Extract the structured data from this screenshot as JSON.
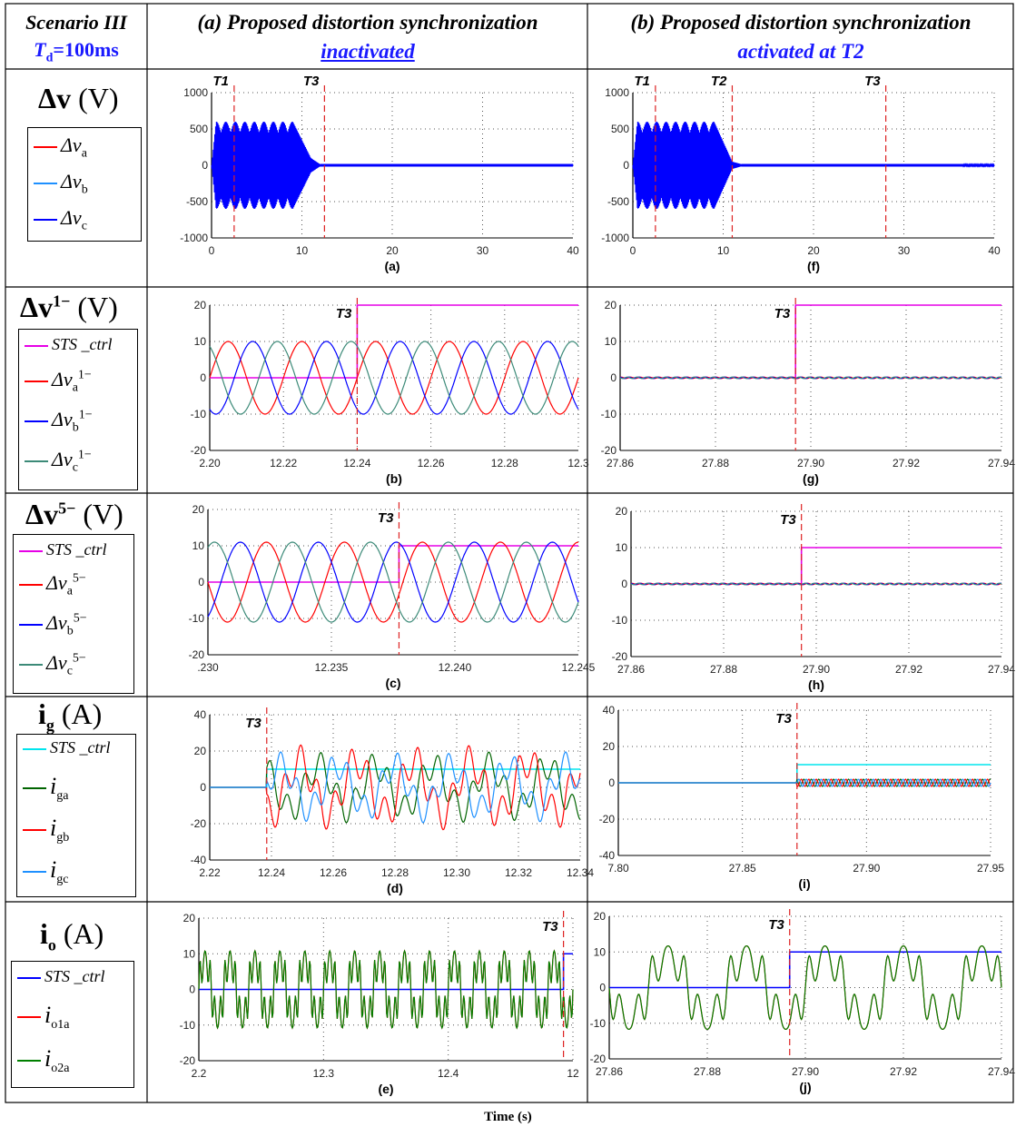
{
  "header": {
    "scenario": "Scenario III",
    "td_symbol": "T",
    "td_sub": "d",
    "td_value": "=100ms",
    "col_a_title": "(a) Proposed distortion synchronization",
    "col_a_state": "inactivated",
    "col_b_title": "(b) Proposed distortion synchronization",
    "col_b_state": "activated at T2"
  },
  "rows": [
    {
      "label_main": "Δv",
      "label_unit": "(V)",
      "label_sup": "",
      "legend": [
        {
          "text": "Δv",
          "sub": "a",
          "sup": "",
          "color": "#ff0000"
        },
        {
          "text": "Δv",
          "sub": "b",
          "sup": "",
          "color": "#1e90ff"
        },
        {
          "text": "Δv",
          "sub": "c",
          "sup": "",
          "color": "#0000ff"
        }
      ]
    },
    {
      "label_main": "Δv",
      "label_unit": "(V)",
      "label_sup": "1−",
      "legend": [
        {
          "text": "STS _ctrl",
          "sub": "",
          "sup": "",
          "color": "#e600e6"
        },
        {
          "text": "Δv",
          "sub": "a",
          "sup": "1−",
          "color": "#ff0000"
        },
        {
          "text": "Δv",
          "sub": "b",
          "sup": "1−",
          "color": "#0000ff"
        },
        {
          "text": "Δv",
          "sub": "c",
          "sup": "1−",
          "color": "#3c8a78"
        }
      ]
    },
    {
      "label_main": "Δv",
      "label_unit": "(V)",
      "label_sup": "5−",
      "legend": [
        {
          "text": "STS _ctrl",
          "sub": "",
          "sup": "",
          "color": "#e600e6"
        },
        {
          "text": "Δv",
          "sub": "a",
          "sup": "5−",
          "color": "#ff0000"
        },
        {
          "text": "Δv",
          "sub": "b",
          "sup": "5−",
          "color": "#0000ff"
        },
        {
          "text": "Δv",
          "sub": "c",
          "sup": "5−",
          "color": "#3c8a78"
        }
      ]
    },
    {
      "label_main": "i",
      "label_unit": "(A)",
      "label_sup": "",
      "label_sub": "g",
      "legend": [
        {
          "text": "STS _ctrl",
          "sub": "",
          "sup": "",
          "color": "#00e5ee"
        },
        {
          "text": "i",
          "sub": "ga",
          "sup": "",
          "color": "#006400"
        },
        {
          "text": "i",
          "sub": "gb",
          "sup": "",
          "color": "#ff0000"
        },
        {
          "text": "i",
          "sub": "gc",
          "sup": "",
          "color": "#1e90ff"
        }
      ]
    },
    {
      "label_main": "i",
      "label_unit": "(A)",
      "label_sup": "",
      "label_sub": "o",
      "legend": [
        {
          "text": "STS _ctrl",
          "sub": "",
          "sup": "",
          "color": "#0000ff"
        },
        {
          "text": "i",
          "sub": "o1a",
          "sup": "",
          "color": "#ff0000"
        },
        {
          "text": "i",
          "sub": "o2a",
          "sup": "",
          "color": "#008000"
        }
      ]
    }
  ],
  "x_axis_label": "Time (s)",
  "chart_data": [
    {
      "id": "a",
      "type": "line",
      "caption": "(a)",
      "xlim": [
        0,
        40
      ],
      "ylim": [
        -1000,
        1000
      ],
      "xticks": [
        "0",
        "10",
        "20",
        "30",
        "40"
      ],
      "yticks": [
        "1000",
        "500",
        "0",
        "-500",
        "-1000"
      ],
      "markers": [
        {
          "label": "T1",
          "x": 2.5
        },
        {
          "label": "T3",
          "x": 12.5
        }
      ],
      "series": [
        {
          "name": "Δva / Δvb / Δvc",
          "envelope": [
            [
              0,
              0
            ],
            [
              0.5,
              600
            ],
            [
              9,
              600
            ],
            [
              11,
              100
            ],
            [
              12,
              15
            ],
            [
              40,
              15
            ]
          ]
        }
      ]
    },
    {
      "id": "f",
      "type": "line",
      "caption": "(f)",
      "xlim": [
        0,
        40
      ],
      "ylim": [
        -1000,
        1000
      ],
      "xticks": [
        "0",
        "10",
        "20",
        "30",
        "40"
      ],
      "yticks": [
        "1000",
        "500",
        "0",
        "-500",
        "-1000"
      ],
      "markers": [
        {
          "label": "T1",
          "x": 2.5
        },
        {
          "label": "T2",
          "x": 11
        },
        {
          "label": "T3",
          "x": 28
        }
      ],
      "series": [
        {
          "name": "Δva / Δvb / Δvc",
          "envelope": [
            [
              0,
              0
            ],
            [
              0.5,
              600
            ],
            [
              9,
              600
            ],
            [
              11,
              50
            ],
            [
              12,
              15
            ],
            [
              40,
              10
            ]
          ]
        }
      ]
    },
    {
      "id": "b",
      "type": "line",
      "caption": "(b)",
      "xlim": [
        12.2,
        12.3
      ],
      "ylim": [
        -20,
        20
      ],
      "xticks": [
        "2.20",
        "12.22",
        "12.24",
        "12.26",
        "12.28",
        "12.3"
      ],
      "yticks": [
        "20",
        "10",
        "0",
        "-10",
        "-20"
      ],
      "markers": [
        {
          "label": "T3",
          "x": 12.24
        }
      ],
      "series": [
        {
          "name": "STS_ctrl",
          "step": {
            "x": 12.24,
            "before": 0,
            "after": 20
          }
        },
        {
          "name": "Δva1−",
          "amp": 10,
          "freq": 50,
          "phase": 0
        },
        {
          "name": "Δvb1−",
          "amp": 10,
          "freq": 50,
          "phase": -120
        },
        {
          "name": "Δvc1−",
          "amp": 10,
          "freq": 50,
          "phase": 120
        }
      ]
    },
    {
      "id": "g",
      "type": "line",
      "caption": "(g)",
      "xlim": [
        27.85,
        27.95
      ],
      "ylim": [
        -20,
        20
      ],
      "xticks": [
        "27.86",
        "27.88",
        "27.90",
        "27.92",
        "27.94"
      ],
      "yticks": [
        "20",
        "10",
        "0",
        "-10",
        "-20"
      ],
      "markers": [
        {
          "label": "T3",
          "x": 27.896
        }
      ],
      "series": [
        {
          "name": "STS_ctrl",
          "step": {
            "x": 27.896,
            "before": 0,
            "after": 20
          }
        },
        {
          "name": "Δva1−",
          "amp": 0.2
        },
        {
          "name": "Δvb1−",
          "amp": 0.2
        },
        {
          "name": "Δvc1−",
          "amp": 0.2
        }
      ]
    },
    {
      "id": "c",
      "type": "line",
      "caption": "(c)",
      "xlim": [
        12.23,
        12.249
      ],
      "ylim": [
        -20,
        20
      ],
      "xticks": [
        ".230",
        "12.235",
        "12.240",
        "12.245"
      ],
      "yticks": [
        "20",
        "10",
        "0",
        "-10",
        "-20"
      ],
      "markers": [
        {
          "label": "T3",
          "x": 12.2398
        }
      ],
      "series": [
        {
          "name": "STS_ctrl",
          "step": {
            "x": 12.2398,
            "before": 0,
            "after": 10
          }
        },
        {
          "name": "Δva5−",
          "amp": 11,
          "freq": 250,
          "phase": 0
        },
        {
          "name": "Δvb5−",
          "amp": 11,
          "freq": 250,
          "phase": 120
        },
        {
          "name": "Δvc5−",
          "amp": 11,
          "freq": 250,
          "phase": -120
        }
      ]
    },
    {
      "id": "h",
      "type": "line",
      "caption": "(h)",
      "xlim": [
        27.85,
        27.95
      ],
      "ylim": [
        -20,
        20
      ],
      "xticks": [
        "27.86",
        "27.88",
        "27.90",
        "27.92",
        "27.94"
      ],
      "yticks": [
        "20",
        "10",
        "0",
        "-10",
        "-20"
      ],
      "markers": [
        {
          "label": "T3",
          "x": 27.896
        }
      ],
      "series": [
        {
          "name": "STS_ctrl",
          "step": {
            "x": 27.896,
            "before": 0,
            "after": 10
          }
        },
        {
          "name": "Δva5−",
          "amp": 0.2
        },
        {
          "name": "Δvb5−",
          "amp": 0.2
        },
        {
          "name": "Δvc5−",
          "amp": 0.2
        }
      ]
    },
    {
      "id": "d",
      "type": "line",
      "caption": "(d)",
      "xlim": [
        12.22,
        12.35
      ],
      "ylim": [
        -40,
        40
      ],
      "xticks": [
        "2.22",
        "12.24",
        "12.26",
        "12.28",
        "12.30",
        "12.32",
        "12.34"
      ],
      "yticks": [
        "40",
        "20",
        "0",
        "-20",
        "-40"
      ],
      "markers": [
        {
          "label": "T3",
          "x": 12.24
        }
      ],
      "series": [
        {
          "name": "STS_ctrl",
          "step": {
            "x": 12.24,
            "before": 0,
            "after": 10
          }
        },
        {
          "name": "iga",
          "amp": 15
        },
        {
          "name": "igb",
          "amp": 18
        },
        {
          "name": "igc",
          "amp": 15
        }
      ]
    },
    {
      "id": "i",
      "type": "line",
      "caption": "(i)",
      "xlim": [
        27.8,
        28.0
      ],
      "ylim": [
        -40,
        40
      ],
      "xticks": [
        "7.80",
        "27.85",
        "27.90",
        "27.95"
      ],
      "yticks": [
        "40",
        "20",
        "0",
        "-20",
        "-40"
      ],
      "markers": [
        {
          "label": "T3",
          "x": 27.896
        }
      ],
      "series": [
        {
          "name": "STS_ctrl",
          "step": {
            "x": 27.896,
            "before": 0,
            "after": 10
          }
        },
        {
          "name": "iga",
          "amp": 2
        },
        {
          "name": "igb",
          "amp": 2
        },
        {
          "name": "igc",
          "amp": 2
        }
      ]
    },
    {
      "id": "e",
      "type": "line",
      "caption": "(e)",
      "xlim": [
        2.2,
        12.5
      ],
      "ylim": [
        -20,
        20
      ],
      "xticks": [
        "2.2",
        "12.3",
        "12.4",
        "12"
      ],
      "yticks": [
        "20",
        "10",
        "0",
        "-10",
        "-20"
      ],
      "markers": [
        {
          "label": "T3",
          "x": 12.24
        }
      ],
      "series": [
        {
          "name": "STS_ctrl",
          "step": {
            "x": 12.24,
            "before": 0,
            "after": 10
          }
        },
        {
          "name": "io1a",
          "amp": 12
        },
        {
          "name": "io2a",
          "amp": 12
        }
      ]
    },
    {
      "id": "j",
      "type": "line",
      "caption": "(j)",
      "xlim": [
        27.85,
        27.95
      ],
      "ylim": [
        -20,
        20
      ],
      "xticks": [
        "27.86",
        "27.88",
        "27.90",
        "27.92",
        "27.94"
      ],
      "yticks": [
        "20",
        "10",
        "0",
        "-10",
        "-20"
      ],
      "markers": [
        {
          "label": "T3",
          "x": 27.896
        }
      ],
      "series": [
        {
          "name": "STS_ctrl",
          "step": {
            "x": 27.896,
            "before": 0,
            "after": 10
          }
        },
        {
          "name": "io1a",
          "amp": 13
        },
        {
          "name": "io2a",
          "amp": 13
        }
      ]
    }
  ]
}
